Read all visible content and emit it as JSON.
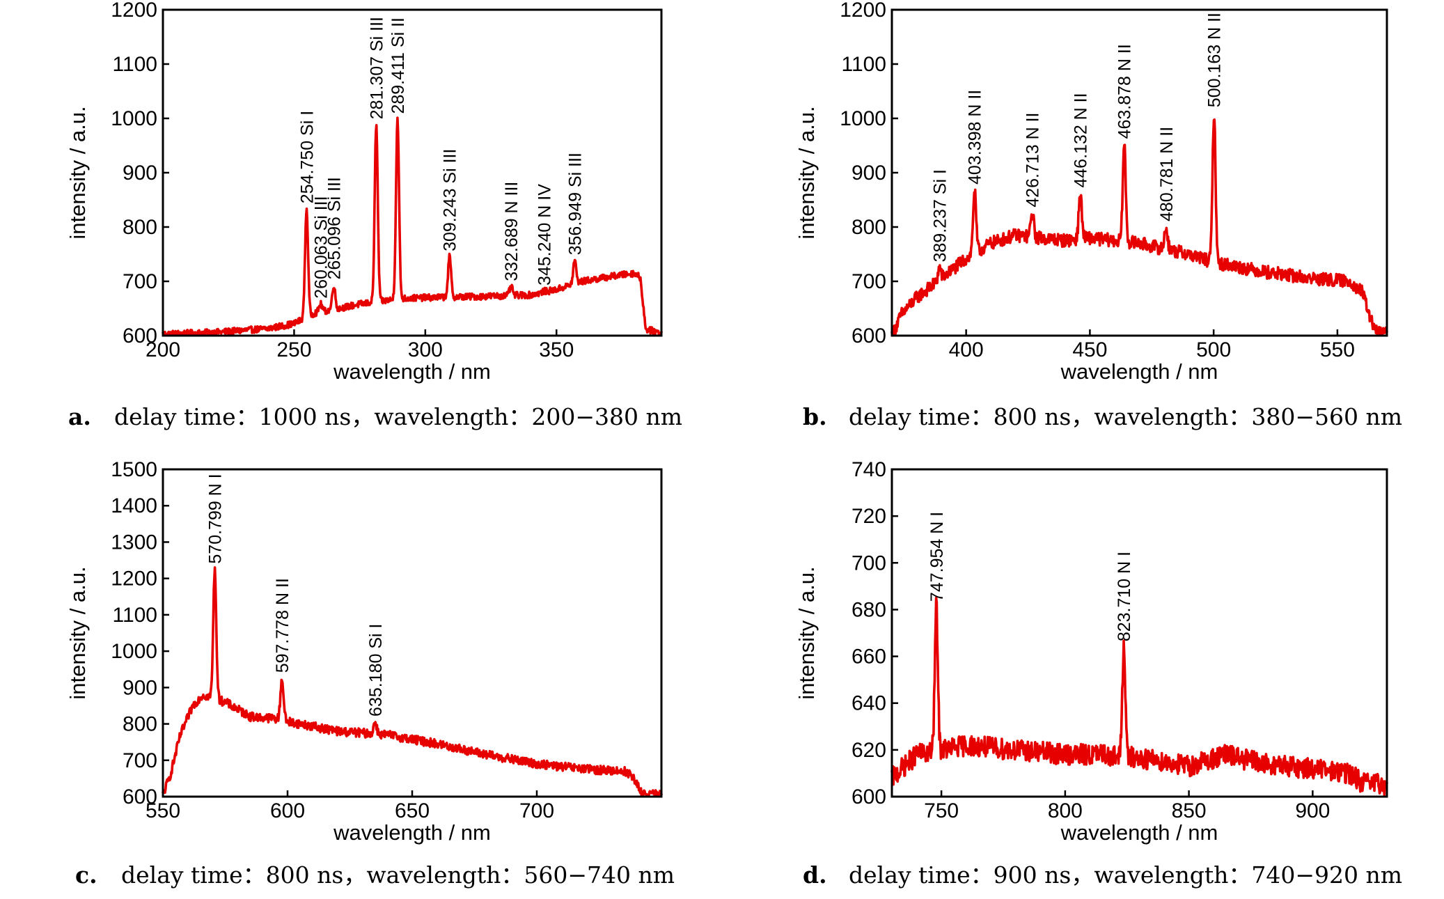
{
  "chart_data": [
    {
      "type": "line",
      "panel": "a.",
      "caption": "delay time：1000 ns，wavelength：200−380 nm",
      "xlabel": "wavelength / nm",
      "ylabel": "intensity / a.u.",
      "xlim": [
        200,
        390
      ],
      "ylim": [
        600,
        1200
      ],
      "xticks": [
        200,
        250,
        300,
        350
      ],
      "yticks": [
        600,
        700,
        800,
        900,
        1000,
        1100,
        1200
      ],
      "color": "#e60000",
      "baseline": [
        [
          200,
          603
        ],
        [
          220,
          606
        ],
        [
          240,
          613
        ],
        [
          250,
          622
        ],
        [
          258,
          642
        ],
        [
          265,
          648
        ],
        [
          275,
          658
        ],
        [
          290,
          668
        ],
        [
          300,
          670
        ],
        [
          320,
          672
        ],
        [
          340,
          675
        ],
        [
          350,
          685
        ],
        [
          360,
          700
        ],
        [
          372,
          710
        ],
        [
          380,
          715
        ],
        [
          382,
          706
        ],
        [
          384,
          612
        ],
        [
          390,
          605
        ]
      ],
      "noise": 6,
      "peaks": [
        {
          "x": 254.75,
          "y": 833,
          "label": "254.750 Si I"
        },
        {
          "x": 260.063,
          "y": 658,
          "label": "260.063 Si III"
        },
        {
          "x": 265.096,
          "y": 693,
          "label": "265.096 Si III"
        },
        {
          "x": 281.307,
          "y": 988,
          "label": "281.307 Si III"
        },
        {
          "x": 289.411,
          "y": 998,
          "label": "289.411 Si II"
        },
        {
          "x": 309.243,
          "y": 745,
          "label": "309.243 Si III"
        },
        {
          "x": 332.689,
          "y": 690,
          "label": "332.689 N III"
        },
        {
          "x": 345.24,
          "y": 682,
          "label": "345.240 N IV"
        },
        {
          "x": 356.949,
          "y": 738,
          "label": "356.949 Si III"
        }
      ]
    },
    {
      "type": "line",
      "panel": "b.",
      "caption": "delay time：800 ns，wavelength：380−560 nm",
      "xlabel": "wavelength / nm",
      "ylabel": "intensity / a.u.",
      "xlim": [
        370,
        570
      ],
      "ylim": [
        600,
        1200
      ],
      "xticks": [
        400,
        450,
        500,
        550
      ],
      "yticks": [
        600,
        700,
        800,
        900,
        1000,
        1100,
        1200
      ],
      "color": "#e60000",
      "baseline": [
        [
          370,
          600
        ],
        [
          374,
          640
        ],
        [
          380,
          670
        ],
        [
          390,
          705
        ],
        [
          400,
          742
        ],
        [
          410,
          770
        ],
        [
          420,
          785
        ],
        [
          430,
          780
        ],
        [
          440,
          775
        ],
        [
          450,
          780
        ],
        [
          470,
          770
        ],
        [
          490,
          750
        ],
        [
          500,
          735
        ],
        [
          520,
          718
        ],
        [
          540,
          705
        ],
        [
          555,
          700
        ],
        [
          560,
          680
        ],
        [
          565,
          610
        ],
        [
          570,
          604
        ]
      ],
      "noise": 12,
      "peaks": [
        {
          "x": 389.237,
          "y": 725,
          "label": "389.237 Si I"
        },
        {
          "x": 403.398,
          "y": 868,
          "label": "403.398 N II"
        },
        {
          "x": 426.713,
          "y": 826,
          "label": "426.713 N II"
        },
        {
          "x": 446.132,
          "y": 862,
          "label": "446.132 N II"
        },
        {
          "x": 463.878,
          "y": 952,
          "label": "463.878 N II"
        },
        {
          "x": 480.781,
          "y": 800,
          "label": "480.781 N II"
        },
        {
          "x": 500.163,
          "y": 1010,
          "label": "500.163 N II"
        }
      ]
    },
    {
      "type": "line",
      "panel": "c.",
      "caption": "delay time：800 ns，wavelength：560−740 nm",
      "xlabel": "wavelength / nm",
      "ylabel": "intensity / a.u.",
      "xlim": [
        550,
        750
      ],
      "ylim": [
        600,
        1500
      ],
      "xticks": [
        550,
        600,
        650,
        700
      ],
      "yticks": [
        600,
        700,
        800,
        900,
        1000,
        1100,
        1200,
        1300,
        1400,
        1500
      ],
      "color": "#e60000",
      "baseline": [
        [
          550,
          605
        ],
        [
          553,
          660
        ],
        [
          557,
          770
        ],
        [
          562,
          850
        ],
        [
          566,
          880
        ],
        [
          575,
          860
        ],
        [
          585,
          820
        ],
        [
          595,
          815
        ],
        [
          605,
          800
        ],
        [
          620,
          780
        ],
        [
          640,
          770
        ],
        [
          660,
          745
        ],
        [
          680,
          715
        ],
        [
          700,
          690
        ],
        [
          720,
          675
        ],
        [
          735,
          670
        ],
        [
          738,
          660
        ],
        [
          742,
          610
        ],
        [
          750,
          604
        ]
      ],
      "noise": 12,
      "peaks": [
        {
          "x": 570.799,
          "y": 1225,
          "label": "570.799 N I"
        },
        {
          "x": 597.778,
          "y": 925,
          "label": "597.778 N II"
        },
        {
          "x": 635.18,
          "y": 805,
          "label": "635.180 Si I"
        }
      ]
    },
    {
      "type": "line",
      "panel": "d.",
      "caption": "delay time：900 ns，wavelength：740−920 nm",
      "xlabel": "wavelength / nm",
      "ylabel": "intensity / a.u.",
      "xlim": [
        730,
        930
      ],
      "ylim": [
        600,
        740
      ],
      "xticks": [
        750,
        800,
        850,
        900
      ],
      "yticks": [
        600,
        620,
        640,
        660,
        680,
        700,
        720,
        740
      ],
      "color": "#e60000",
      "baseline": [
        [
          730,
          608
        ],
        [
          740,
          618
        ],
        [
          760,
          622
        ],
        [
          780,
          620
        ],
        [
          800,
          618
        ],
        [
          815,
          618
        ],
        [
          835,
          616
        ],
        [
          850,
          613
        ],
        [
          865,
          618
        ],
        [
          880,
          614
        ],
        [
          900,
          612
        ],
        [
          915,
          610
        ],
        [
          920,
          606
        ],
        [
          930,
          605
        ]
      ],
      "noise": 4.5,
      "peaks": [
        {
          "x": 747.954,
          "y": 681,
          "label": "747.954 N I"
        },
        {
          "x": 823.71,
          "y": 664,
          "label": "823.710 N I"
        }
      ]
    }
  ]
}
